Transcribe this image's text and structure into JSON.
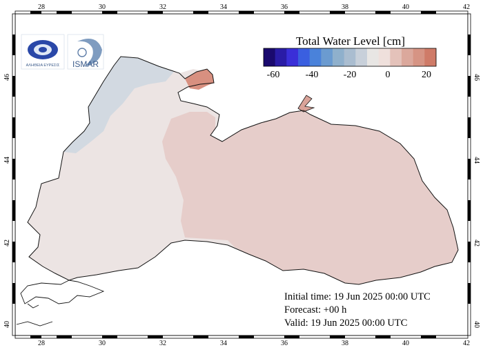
{
  "map": {
    "lon_ticks": [
      "28",
      "30",
      "32",
      "34",
      "36",
      "38",
      "40",
      "42"
    ],
    "lat_ticks": [
      "40",
      "42",
      "44",
      "46"
    ],
    "colors": {
      "land": "#ffffff",
      "sea_west": "#ece4e3",
      "sea_east": "#e6cdca",
      "shelf": "#d0d8e0",
      "azov": "#d89080",
      "coast": "#111111"
    }
  },
  "legend": {
    "title": "Total Water Level [cm]",
    "tick_labels": [
      "-60",
      "-40",
      "-20",
      "0",
      "20"
    ],
    "colors": [
      "#1a0a6e",
      "#2a1ca6",
      "#3a2fd8",
      "#3a5fe0",
      "#4a82da",
      "#6b9bd0",
      "#8fb0cc",
      "#aabdd0",
      "#c8d0da",
      "#e8e6e4",
      "#efe0dc",
      "#e4c2ba",
      "#dba89c",
      "#d69484",
      "#cf7b68"
    ]
  },
  "logos": {
    "left_caption": "ΑΛΗΘΕΙΑ ΕΥΡΕΣΙΣ",
    "right_caption": "ISMAR"
  },
  "info": {
    "initial_time": "Initial time: 19 Jun 2025 00:00 UTC",
    "forecast": "Forecast: +00 h",
    "valid": "Valid: 19 Jun 2025 00:00 UTC"
  }
}
